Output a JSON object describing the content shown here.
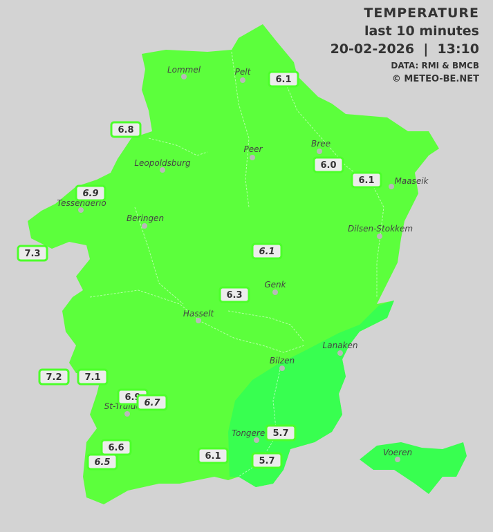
{
  "header": {
    "title": "TEMPERATURE",
    "subtitle": "last 10 minutes",
    "datetime": "20-02-2026  |  13:10",
    "source": "DATA: RMI & BMCB",
    "copyright": "© METEO-BE.NET"
  },
  "colors": {
    "background": "#d3d3d3",
    "region_main": "#5cff3c",
    "region_cool": "#38ff50",
    "label_border": "#4cff2a"
  },
  "cities": [
    "Lommel",
    "Pelt",
    "Peer",
    "Bree",
    "Maaseik",
    "Leopoldsburg",
    "Tessenderlo",
    "Beringen",
    "Dilsen-Stokkem",
    "Genk",
    "Hasselt",
    "Lanaken",
    "Bilzen",
    "St-Truiden",
    "Tongeren",
    "Voeren"
  ],
  "stations": [
    "6.1",
    "6.8",
    "6.9",
    "7.3",
    "6.0",
    "6.1",
    "6.1",
    "6.3",
    "7.2",
    "7.1",
    "6.9",
    "6.7",
    "6.6",
    "6.5",
    "6.1",
    "5.7",
    "5.7"
  ]
}
